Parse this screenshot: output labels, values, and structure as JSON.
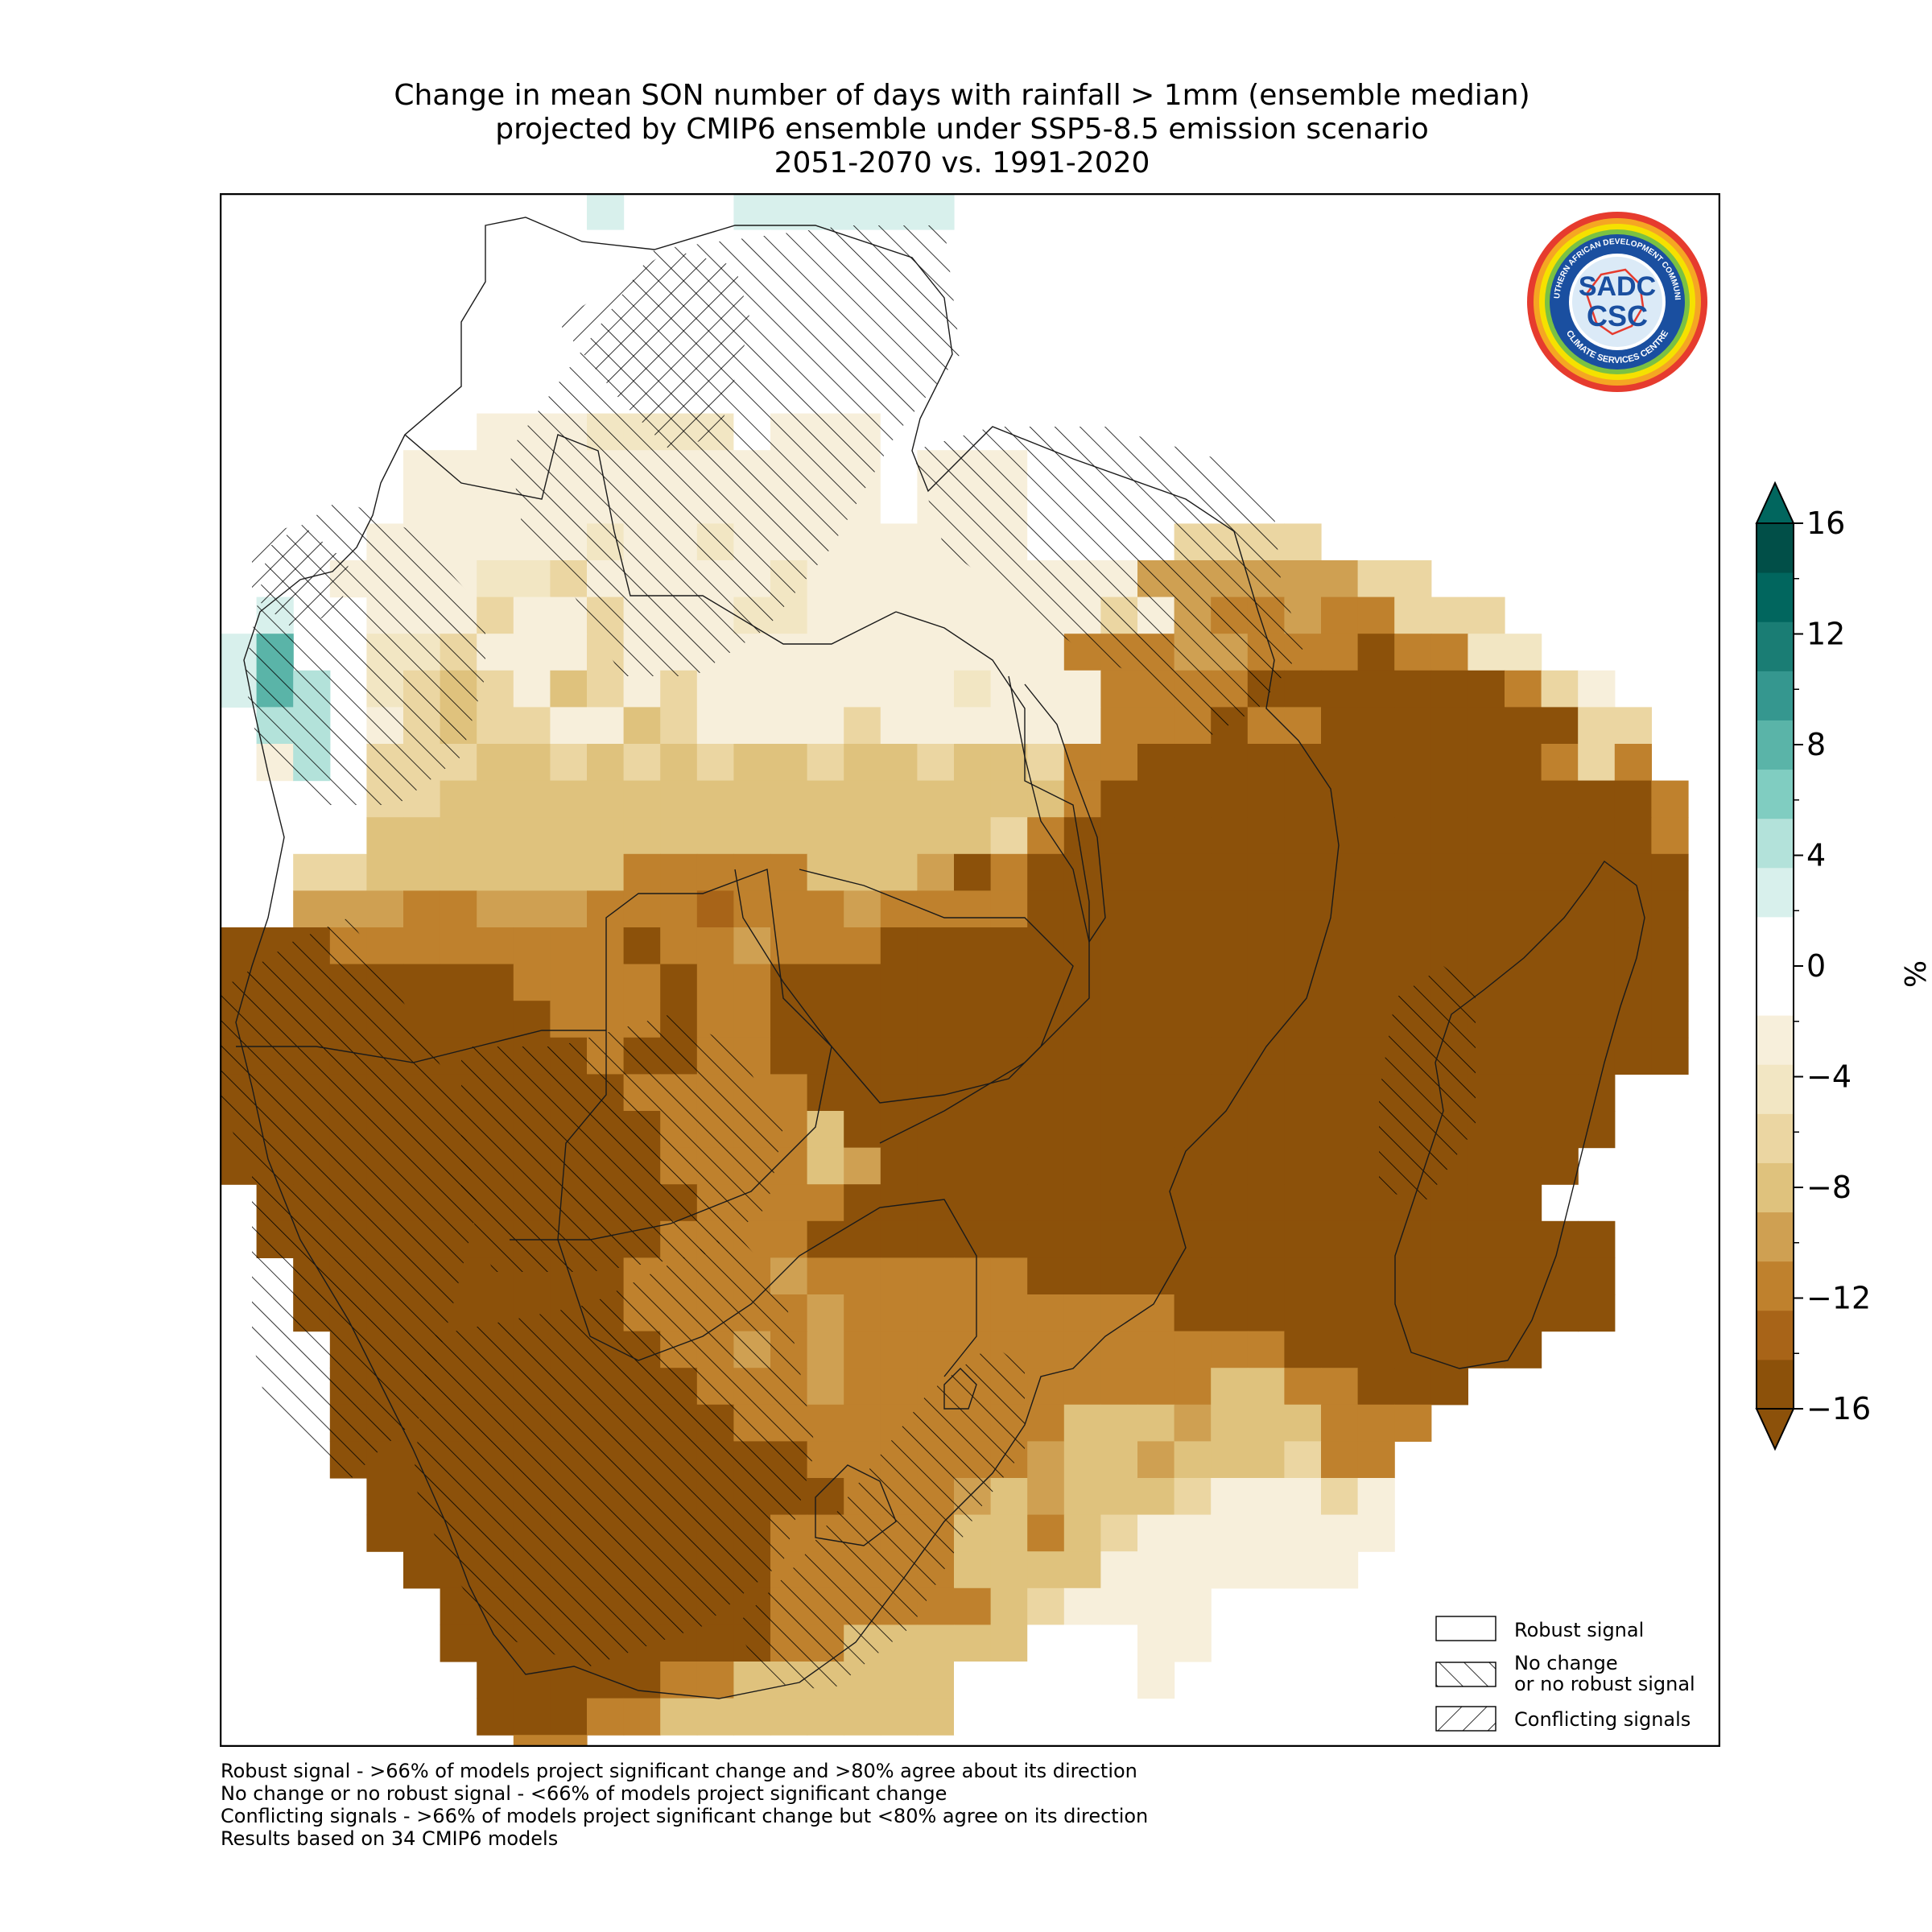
{
  "title": {
    "line1": "Change in mean SON number of days with rainfall > 1mm (ensemble median)",
    "line2": "projected by CMIP6 ensemble under SSP5-8.5 emission scenario",
    "line3": "2051-2070 vs. 1991-2020"
  },
  "logo": {
    "text_top": "SOUTHERN AFRICAN DEVELOPMENT COMMUNITY",
    "text_bottom": "CLIMATE SERVICES CENTRE",
    "mark_top": "SADC",
    "mark_bottom": "CSC"
  },
  "legend": {
    "robust": "Robust signal",
    "nochange_1": "No change",
    "nochange_2": "or no robust signal",
    "conflicting": "Conflicting signals"
  },
  "colorbar": {
    "unit": "%",
    "ticks": [
      16,
      12,
      8,
      4,
      0,
      -4,
      -8,
      -12,
      -16
    ],
    "tick_labels": [
      "16",
      "12",
      "8",
      "4",
      "0",
      "−4",
      "−8",
      "−12",
      "−16"
    ],
    "min": -16,
    "max": 16,
    "colors_bottom_to_top": [
      "#8c510a",
      "#a86418",
      "#bf812d",
      "#cfa052",
      "#dfc27d",
      "#ebd6a2",
      "#f2e6c3",
      "#f7efdb",
      "#ffffff",
      "#ffffff",
      "#d8f0ec",
      "#b3e2da",
      "#80cdc1",
      "#5ab4a8",
      "#35978f",
      "#1a7d74",
      "#01665e",
      "#014f48"
    ],
    "extend_low": "#8c510a",
    "extend_high": "#01665e"
  },
  "footnotes": [
    "Robust signal - >66% of models project significant change and >80% agree about its direction",
    "No change or no robust signal - <66% of models project significant change",
    "Conflicting signals - >66% of models project significant change but <80% agree on its direction",
    "Results based on 34 CMIP6 models"
  ],
  "map_data": {
    "variable": "Change in mean SON number of days with rainfall > 1mm (ensemble median)",
    "unit": "%",
    "hatching": [
      "Robust signal",
      "No change or no robust signal",
      "Conflicting signals"
    ]
  }
}
